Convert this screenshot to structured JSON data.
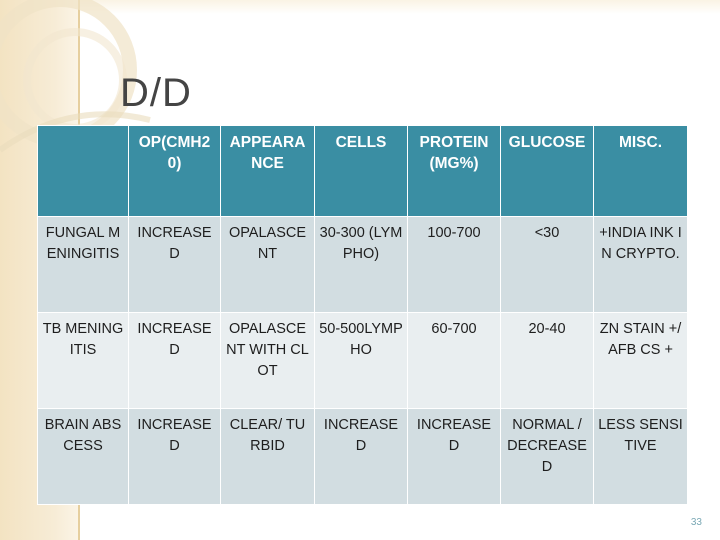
{
  "slide": {
    "title": "D/D",
    "page_number": "33"
  },
  "table": {
    "headers": [
      "",
      "OP(CMH20)",
      "APPEARANCE",
      "CELLS",
      "PROTEIN(MG%)",
      "GLUCOSE",
      "MISC."
    ],
    "rows": [
      {
        "cells": [
          "FUNGAL MENINGITIS",
          "INCREASED",
          "OPALASCENT",
          "30-300 (LYMPHO)",
          "100-700",
          "<30",
          "+INDIA INK IN CRYPTO."
        ]
      },
      {
        "cells": [
          "TB MENINGITIS",
          "INCREASED",
          "OPALASCENT WITH CLOT",
          "50-500LYMPHO",
          "60-700",
          "20-40",
          "ZN STAIN +/AFB CS +"
        ]
      },
      {
        "cells": [
          "BRAIN ABSCESS",
          "INCREASED",
          "CLEAR/ TURBID",
          "INCREASED",
          "INCREASED",
          "NORMAL / DECREASED",
          "LESS SENSITIVE"
        ]
      }
    ]
  },
  "colors": {
    "header_bg": "#3a8ea3",
    "row_bg": "#d2dde1",
    "row_alt_bg": "#e9eef0",
    "accent_band": "#f3e3c2"
  }
}
